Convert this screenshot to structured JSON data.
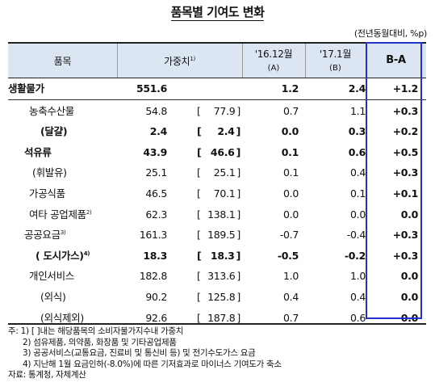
{
  "title": "품목별 기여도 변화",
  "unit": "(전년동월대비, %p)",
  "header": {
    "item": "품목",
    "weight": "가중치",
    "weight_sup": "1)",
    "col_a": "'16.12월",
    "col_a_sub": "(A)",
    "col_b": "'17.1월",
    "col_b_sub": "(B)",
    "col_ba": "B-A"
  },
  "rows": [
    {
      "name": "생활물가",
      "sup": "",
      "weight": "551.6",
      "bracket": "",
      "a": "1.2",
      "b": "2.4",
      "ba": "+1.2"
    },
    {
      "name": "농축수산물",
      "sup": "",
      "weight": "54.8",
      "bracket": "77.9",
      "a": "0.7",
      "b": "1.1",
      "ba": "+0.3"
    },
    {
      "name": "(달걀)",
      "sup": "",
      "weight": "2.4",
      "bracket": "2.4",
      "a": "0.0",
      "b": "0.3",
      "ba": "+0.2"
    },
    {
      "name": "석유류",
      "sup": "",
      "weight": "43.9",
      "bracket": "46.6",
      "a": "0.1",
      "b": "0.6",
      "ba": "+0.5"
    },
    {
      "name": "(휘발유)",
      "sup": "",
      "weight": "25.1",
      "bracket": "25.1",
      "a": "0.1",
      "b": "0.4",
      "ba": "+0.3"
    },
    {
      "name": "가공식품",
      "sup": "",
      "weight": "46.5",
      "bracket": "70.1",
      "a": "0.0",
      "b": "0.1",
      "ba": "+0.1"
    },
    {
      "name": "여타 공업제품",
      "sup": "2)",
      "weight": "62.3",
      "bracket": "138.1",
      "a": "0.0",
      "b": "0.0",
      "ba": "0.0"
    },
    {
      "name": "공공요금",
      "sup": "3)",
      "weight": "161.3",
      "bracket": "189.5",
      "a": "-0.7",
      "b": "-0.4",
      "ba": "+0.3"
    },
    {
      "name": "( 도시가스)",
      "sup": "4)",
      "weight": "18.3",
      "bracket": "18.3",
      "a": "-0.5",
      "b": "-0.2",
      "ba": "+0.3"
    },
    {
      "name": "개인서비스",
      "sup": "",
      "weight": "182.8",
      "bracket": "313.6",
      "a": "1.0",
      "b": "1.0",
      "ba": "0.0"
    },
    {
      "name": "(외식)",
      "sup": "",
      "weight": "90.2",
      "bracket": "125.8",
      "a": "0.4",
      "b": "0.4",
      "ba": "0.0"
    },
    {
      "name": "(외식제외)",
      "sup": "",
      "weight": "92.6",
      "bracket": "187.8",
      "a": "0.7",
      "b": "0.6",
      "ba": "0.0"
    }
  ],
  "bracket_open": "[",
  "bracket_close": "]",
  "notes": [
    "주: 1) [  ]내는 해당품목의 소비자물가지수내 가중치",
    "2) 섬유제품, 의약품, 화장품 및 기타공업제품",
    "3) 공공서비스(교통요금, 진료비 및 통신비 등) 및 전기수도가스 요금",
    "4) 지난해 1월 요금인하(-8.0%)에 따른 기저효과로 마이너스 기여도가 축소",
    "자료: 통계청, 자체계산"
  ]
}
